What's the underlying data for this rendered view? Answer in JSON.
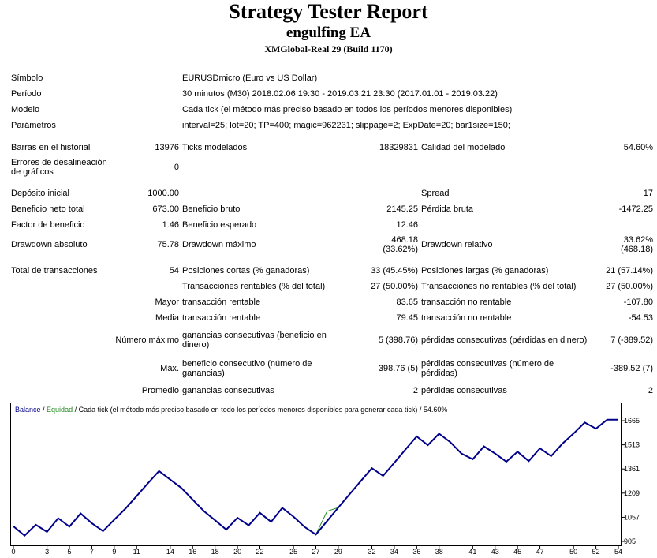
{
  "header": {
    "title": "Strategy Tester Report",
    "ea_name": "engulfing EA",
    "server": "XMGlobal-Real 29 (Build 1170)"
  },
  "info": {
    "symbol_label": "Símbolo",
    "symbol_value": "EURUSDmicro (Euro vs US Dollar)",
    "period_label": "Período",
    "period_value": "30 minutos (M30) 2018.02.06 19:30 - 2019.03.21 23:30 (2017.01.01 - 2019.03.22)",
    "model_label": "Modelo",
    "model_value": "Cada tick (el método más preciso basado en todos los períodos menores disponibles)",
    "params_label": "Parámetros",
    "params_value": "interval=25; lot=20; TP=400; magic=962231; slippage=2; ExpDate=20; bar1size=150;"
  },
  "stats": {
    "bars_label": "Barras en el historial",
    "bars_value": "13976",
    "ticks_label": "Ticks modelados",
    "ticks_value": "18329831",
    "quality_label": "Calidad del modelado",
    "quality_value": "54.60%",
    "mismatch_label": "Errores de desalineación de gráficos",
    "mismatch_value": "0",
    "deposit_label": "Depósito inicial",
    "deposit_value": "1000.00",
    "spread_label": "Spread",
    "spread_value": "17",
    "net_label": "Beneficio neto total",
    "net_value": "673.00",
    "gross_profit_label": "Beneficio bruto",
    "gross_profit_value": "2145.25",
    "gross_loss_label": "Pérdida bruta",
    "gross_loss_value": "-1472.25",
    "pf_label": "Factor de beneficio",
    "pf_value": "1.46",
    "expected_label": "Beneficio esperado",
    "expected_value": "12.46",
    "dd_abs_label": "Drawdown absoluto",
    "dd_abs_value": "75.78",
    "dd_max_label": "Drawdown máximo",
    "dd_max_value1": "468.18",
    "dd_max_value2": "(33.62%)",
    "dd_rel_label": "Drawdown relativo",
    "dd_rel_value1": "33.62%",
    "dd_rel_value2": "(468.18)",
    "trades_label": "Total de transacciones",
    "trades_value": "54",
    "short_label": "Posiciones cortas (% ganadoras)",
    "short_value": "33 (45.45%)",
    "long_label": "Posiciones largas (% ganadoras)",
    "long_value": "21 (57.14%)",
    "profit_trades_label": "Transacciones rentables (% del total)",
    "profit_trades_value": "27 (50.00%)",
    "loss_trades_label": "Transacciones no rentables (% del total)",
    "loss_trades_value": "27 (50.00%)",
    "largest_label": "Mayor",
    "largest_profit_label": "transacción rentable",
    "largest_profit_value": "83.65",
    "largest_loss_label": "transacción no rentable",
    "largest_loss_value": "-107.80",
    "average_label": "Media",
    "avg_profit_label": "transacción rentable",
    "avg_profit_value": "79.45",
    "avg_loss_label": "transacción no rentable",
    "avg_loss_value": "-54.53",
    "maxnum_label": "Número máximo",
    "maxnum_wins_label": "ganancias consecutivas (beneficio en dinero)",
    "maxnum_wins_value": "5 (398.76)",
    "maxnum_losses_label": "pérdidas consecutivas (pérdidas en dinero)",
    "maxnum_losses_value": "7 (-389.52)",
    "max_label": "Máx.",
    "max_profit_label": "beneficio consecutivo (número de ganancias)",
    "max_profit_value": "398.76 (5)",
    "max_loss_label": "pérdidas consecutivas (número de pérdidas)",
    "max_loss_value": "-389.52 (7)",
    "avg_cons_label": "Promedio",
    "avg_wins_label": "ganancias consecutivas",
    "avg_wins_value": "2",
    "avg_losses_label": "pérdidas consecutivas",
    "avg_losses_value": "2"
  },
  "chart_data": {
    "type": "line",
    "legend": {
      "balance": "Balance",
      "sep1": " / ",
      "equity": "Equidad",
      "sep2": " / ",
      "description": "Cada tick (el método más preciso basado en todo los períodos menores disponibles para generar cada tick)  / 54.60%"
    },
    "colors": {
      "balance": "#00008B",
      "equity": "#228B22",
      "border": "#000000"
    },
    "x_ticks": [
      "0",
      "3",
      "5",
      "7",
      "9",
      "11",
      "14",
      "16",
      "18",
      "20",
      "22",
      "25",
      "27",
      "29",
      "32",
      "34",
      "36",
      "38",
      "41",
      "43",
      "45",
      "47",
      "50",
      "52",
      "54"
    ],
    "y_ticks": [
      "1665",
      "1513",
      "1361",
      "1209",
      "1057",
      "905"
    ],
    "ylim": [
      905,
      1690
    ],
    "xlim": [
      0,
      54
    ],
    "series": [
      {
        "name": "Balance",
        "x": [
          0,
          1,
          2,
          3,
          4,
          5,
          6,
          7,
          8,
          9,
          10,
          11,
          12,
          13,
          14,
          15,
          16,
          17,
          18,
          19,
          20,
          21,
          22,
          23,
          24,
          25,
          26,
          27,
          28,
          29,
          30,
          31,
          32,
          33,
          34,
          35,
          36,
          37,
          38,
          39,
          40,
          41,
          42,
          43,
          44,
          45,
          46,
          47,
          48,
          49,
          50,
          51,
          52,
          53,
          54
        ],
        "y": [
          1000,
          942,
          1010,
          965,
          1051,
          998,
          1081,
          1020,
          970,
          1041,
          1111,
          1190,
          1270,
          1348,
          1294,
          1241,
          1168,
          1096,
          1038,
          979,
          1054,
          1006,
          1085,
          1028,
          1116,
          1061,
          996,
          948,
          1033,
          1118,
          1201,
          1284,
          1366,
          1318,
          1400,
          1484,
          1566,
          1511,
          1583,
          1530,
          1458,
          1422,
          1503,
          1458,
          1407,
          1470,
          1411,
          1491,
          1442,
          1520,
          1584,
          1653,
          1615,
          1671,
          1671
        ]
      },
      {
        "name": "Equidad",
        "x": [
          0,
          1,
          2,
          3,
          4,
          5,
          6,
          7,
          8,
          9,
          10,
          11,
          12,
          13,
          14,
          15,
          16,
          17,
          18,
          19,
          20,
          21,
          22,
          23,
          24,
          25,
          26,
          27,
          28,
          29,
          30,
          31,
          32,
          33,
          34,
          35,
          36,
          37,
          38,
          39,
          40,
          41,
          42,
          43,
          44,
          45,
          46,
          47,
          48,
          49,
          50,
          51,
          52,
          53,
          54
        ],
        "y": [
          1000,
          942,
          1010,
          965,
          1051,
          998,
          1081,
          1020,
          970,
          1041,
          1111,
          1190,
          1270,
          1348,
          1294,
          1241,
          1168,
          1096,
          1038,
          979,
          1054,
          1006,
          1085,
          1028,
          1116,
          1061,
          996,
          948,
          1095,
          1118,
          1201,
          1284,
          1366,
          1318,
          1400,
          1484,
          1566,
          1511,
          1583,
          1530,
          1458,
          1422,
          1503,
          1458,
          1407,
          1470,
          1411,
          1491,
          1442,
          1520,
          1584,
          1653,
          1615,
          1671,
          1671
        ]
      }
    ]
  }
}
